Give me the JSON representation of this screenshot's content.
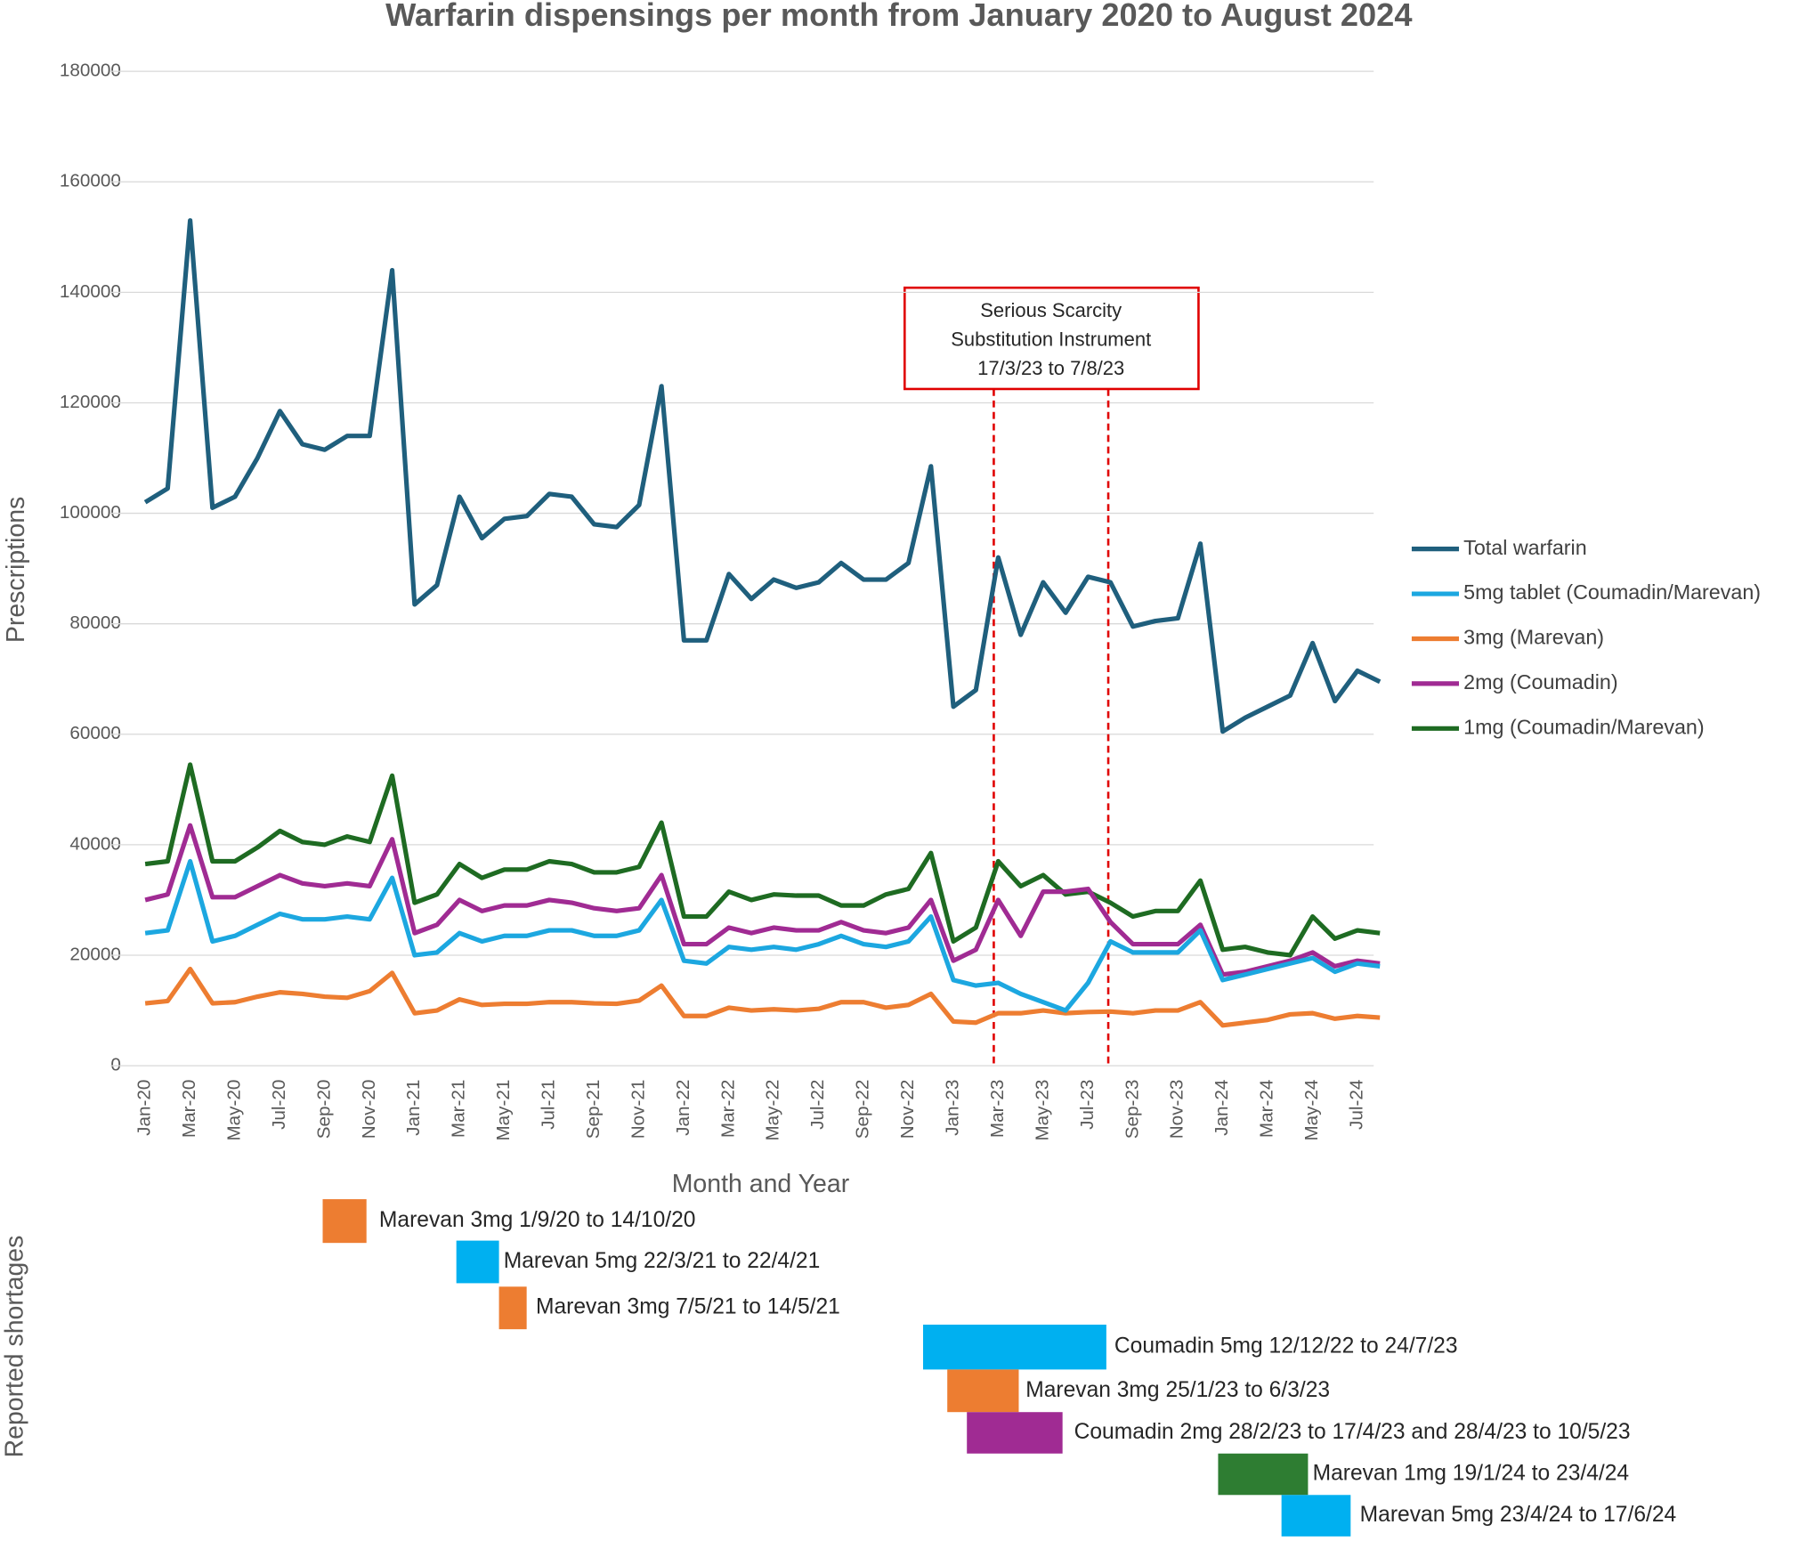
{
  "chart_data": {
    "type": "line",
    "title": "Warfarin dispensings per month from January 2020 to August 2024",
    "x_label": "Month and Year",
    "y_label": "Prescriptions",
    "categories": [
      "Jan-20",
      null,
      "Mar-20",
      null,
      "May-20",
      null,
      "Jul-20",
      null,
      "Sep-20",
      null,
      "Nov-20",
      null,
      "Jan-21",
      null,
      "Mar-21",
      null,
      "May-21",
      null,
      "Jul-21",
      null,
      "Sep-21",
      null,
      "Nov-21",
      null,
      "Jan-22",
      null,
      "Mar-22",
      null,
      "May-22",
      null,
      "Jul-22",
      null,
      "Sep-22",
      null,
      "Nov-22",
      null,
      "Jan-23",
      null,
      "Mar-23",
      null,
      "May-23",
      null,
      "Jul-23",
      null,
      "Sep-23",
      null,
      "Nov-23",
      null,
      "Jan-24",
      null,
      "Mar-24",
      null,
      "May-24",
      null,
      "Jul-24",
      null
    ],
    "series": [
      {
        "name": "Total warfarin",
        "color": "#1f5f7d",
        "values": [
          102000,
          104500,
          153000,
          101000,
          103000,
          110000,
          118500,
          112500,
          111500,
          114000,
          114000,
          144000,
          83500,
          87000,
          103000,
          95500,
          99000,
          99500,
          103500,
          103000,
          98000,
          97500,
          101500,
          123000,
          77000,
          77000,
          89000,
          84500,
          88000,
          86500,
          87500,
          91000,
          88000,
          88000,
          91000,
          108500,
          65000,
          68000,
          92000,
          78000,
          87500,
          82000,
          88500,
          87500,
          79500,
          80500,
          81000,
          94500,
          60500,
          63000,
          65000,
          67000,
          76500,
          66000,
          71500,
          69500
        ]
      },
      {
        "name": "5mg tablet (Coumadin/Marevan)",
        "color": "#1ca7e0",
        "values": [
          24000,
          24500,
          37000,
          22500,
          23500,
          25500,
          27500,
          26500,
          26500,
          27000,
          26500,
          34000,
          20000,
          20500,
          24000,
          22500,
          23500,
          23500,
          24500,
          24500,
          23500,
          23500,
          24500,
          30000,
          19000,
          18500,
          21500,
          21000,
          21500,
          21000,
          22000,
          23500,
          22000,
          21500,
          22500,
          27000,
          15500,
          14500,
          15000,
          13000,
          11500,
          10000,
          15000,
          22500,
          20500,
          20500,
          20500,
          24500,
          15500,
          16500,
          17500,
          18500,
          19500,
          17000,
          18500,
          18000
        ]
      },
      {
        "name": "3mg (Marevan)",
        "color": "#ed7d31",
        "values": [
          11300,
          11700,
          17500,
          11300,
          11500,
          12500,
          13300,
          13000,
          12500,
          12300,
          13500,
          16800,
          9500,
          10000,
          12000,
          11000,
          11200,
          11200,
          11500,
          11500,
          11300,
          11200,
          11800,
          14500,
          9000,
          9000,
          10500,
          10000,
          10200,
          10000,
          10300,
          11500,
          11500,
          10500,
          11000,
          13000,
          8000,
          7800,
          9500,
          9500,
          10000,
          9500,
          9700,
          9800,
          9500,
          10000,
          10000,
          11500,
          7300,
          7800,
          8300,
          9300,
          9500,
          8500,
          9000,
          8700
        ]
      },
      {
        "name": "2mg (Coumadin)",
        "color": "#a02b93",
        "values": [
          30000,
          31000,
          43500,
          30500,
          30500,
          32500,
          34500,
          33000,
          32500,
          33000,
          32500,
          41000,
          24000,
          25500,
          30000,
          28000,
          29000,
          29000,
          30000,
          29500,
          28500,
          28000,
          28500,
          34500,
          22000,
          22000,
          25000,
          24000,
          25000,
          24500,
          24500,
          26000,
          24500,
          24000,
          25000,
          30000,
          19000,
          21000,
          30000,
          23500,
          31500,
          31500,
          32000,
          26000,
          22000,
          22000,
          22000,
          25500,
          16500,
          17000,
          18000,
          19000,
          20500,
          18000,
          19000,
          18500
        ]
      },
      {
        "name": "1mg (Coumadin/Marevan)",
        "color": "#1e6b22",
        "values": [
          36500,
          37000,
          54500,
          37000,
          37000,
          39500,
          42500,
          40500,
          40000,
          41500,
          40500,
          52500,
          29500,
          31000,
          36500,
          34000,
          35500,
          35500,
          37000,
          36500,
          35000,
          35000,
          36000,
          44000,
          27000,
          27000,
          31500,
          30000,
          31000,
          30800,
          30800,
          29000,
          29000,
          31000,
          32000,
          38500,
          22500,
          25000,
          37000,
          32500,
          34500,
          31000,
          31500,
          29500,
          27000,
          28000,
          28000,
          33500,
          21000,
          21500,
          20500,
          20000,
          27000,
          23000,
          24500,
          24000
        ]
      }
    ],
    "ylim": [
      0,
      180000
    ],
    "yticks": [
      0,
      20000,
      40000,
      60000,
      80000,
      100000,
      120000,
      140000,
      160000,
      180000
    ],
    "grid": true,
    "legend": "right",
    "annotation": [
      "Serious Scarcity",
      "Substitution Instrument",
      "17/3/23 to 7/8/23"
    ]
  },
  "shortages": {
    "label": "Reported shortages",
    "items": [
      {
        "text": "Marevan 3mg 1/9/20 to 14/10/20",
        "color": "#ed7d31"
      },
      {
        "text": "Marevan 5mg 22/3/21 to 22/4/21",
        "color": "#00b0f0"
      },
      {
        "text": "Marevan 3mg 7/5/21 to 14/5/21",
        "color": "#ed7d31"
      },
      {
        "text": "Coumadin 5mg 12/12/22 to 24/7/23",
        "color": "#00b0f0"
      },
      {
        "text": "Marevan 3mg 25/1/23 to 6/3/23",
        "color": "#ed7d31"
      },
      {
        "text": "Coumadin 2mg 28/2/23 to 17/4/23 and 28/4/23 to 10/5/23",
        "color": "#a02b93"
      },
      {
        "text": "Marevan 1mg 19/1/24 to 23/4/24",
        "color": "#2e7d32"
      },
      {
        "text": "Marevan 5mg 23/4/24 to 17/6/24",
        "color": "#00b0f0"
      }
    ]
  }
}
